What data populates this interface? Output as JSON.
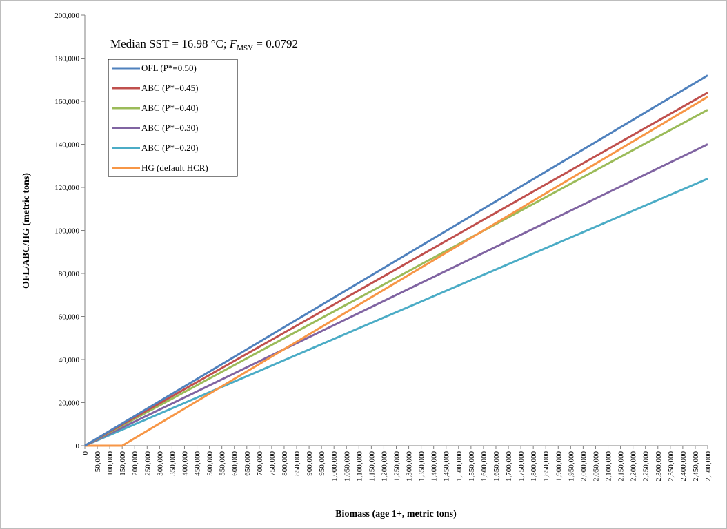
{
  "chart_data": {
    "type": "line",
    "annotation": {
      "prefix": "Median SST = 16.98 °C; ",
      "f_label": "F",
      "f_subscript": "MSY",
      "suffix": " = 0.0792"
    },
    "xlabel": "Biomass (age 1+, metric tons)",
    "ylabel": "OFL/ABC/HG (metric tons)",
    "xlim": [
      0,
      2500000
    ],
    "ylim": [
      0,
      200000
    ],
    "xticks": [
      0,
      50000,
      100000,
      150000,
      200000,
      250000,
      300000,
      350000,
      400000,
      450000,
      500000,
      550000,
      600000,
      650000,
      700000,
      750000,
      800000,
      850000,
      900000,
      950000,
      1000000,
      1050000,
      1100000,
      1150000,
      1200000,
      1250000,
      1300000,
      1350000,
      1400000,
      1450000,
      1500000,
      1550000,
      1600000,
      1650000,
      1700000,
      1750000,
      1800000,
      1850000,
      1900000,
      1950000,
      2000000,
      2050000,
      2100000,
      2150000,
      2200000,
      2250000,
      2300000,
      2350000,
      2400000,
      2450000,
      2500000
    ],
    "xtick_labels": [
      "0",
      "50,000",
      "100,000",
      "150,000",
      "200,000",
      "250,000",
      "300,000",
      "350,000",
      "400,000",
      "450,000",
      "500,000",
      "550,000",
      "600,000",
      "650,000",
      "700,000",
      "750,000",
      "800,000",
      "850,000",
      "900,000",
      "950,000",
      "1,000,000",
      "1,050,000",
      "1,100,000",
      "1,150,000",
      "1,200,000",
      "1,250,000",
      "1,300,000",
      "1,350,000",
      "1,400,000",
      "1,450,000",
      "1,500,000",
      "1,550,000",
      "1,600,000",
      "1,650,000",
      "1,700,000",
      "1,750,000",
      "1,800,000",
      "1,850,000",
      "1,900,000",
      "1,950,000",
      "2,000,000",
      "2,050,000",
      "2,100,000",
      "2,150,000",
      "2,200,000",
      "2,250,000",
      "2,300,000",
      "2,350,000",
      "2,400,000",
      "2,450,000",
      "2,500,000"
    ],
    "yticks": [
      0,
      20000,
      40000,
      60000,
      80000,
      100000,
      120000,
      140000,
      160000,
      180000,
      200000
    ],
    "ytick_labels": [
      "0",
      "20,000",
      "40,000",
      "60,000",
      "80,000",
      "100,000",
      "120,000",
      "140,000",
      "160,000",
      "180,000",
      "200,000"
    ],
    "grid": false,
    "legend_position": "top-left",
    "series": [
      {
        "name": "OFL (P*=0.50)",
        "color": "#4F81BD",
        "x": [
          0,
          2500000
        ],
        "y": [
          0,
          172000
        ]
      },
      {
        "name": "ABC (P*=0.45)",
        "color": "#C0504D",
        "x": [
          0,
          2500000
        ],
        "y": [
          0,
          164000
        ]
      },
      {
        "name": "ABC (P*=0.40)",
        "color": "#9BBB59",
        "x": [
          0,
          2500000
        ],
        "y": [
          0,
          156000
        ]
      },
      {
        "name": "ABC (P*=0.30)",
        "color": "#8064A2",
        "x": [
          0,
          2500000
        ],
        "y": [
          0,
          140000
        ]
      },
      {
        "name": "ABC (P*=0.20)",
        "color": "#4BACC6",
        "x": [
          0,
          2500000
        ],
        "y": [
          0,
          124000
        ]
      },
      {
        "name": "HG (default HCR)",
        "color": "#F79646",
        "x": [
          0,
          150000,
          2500000
        ],
        "y": [
          0,
          0,
          162000
        ]
      }
    ]
  }
}
